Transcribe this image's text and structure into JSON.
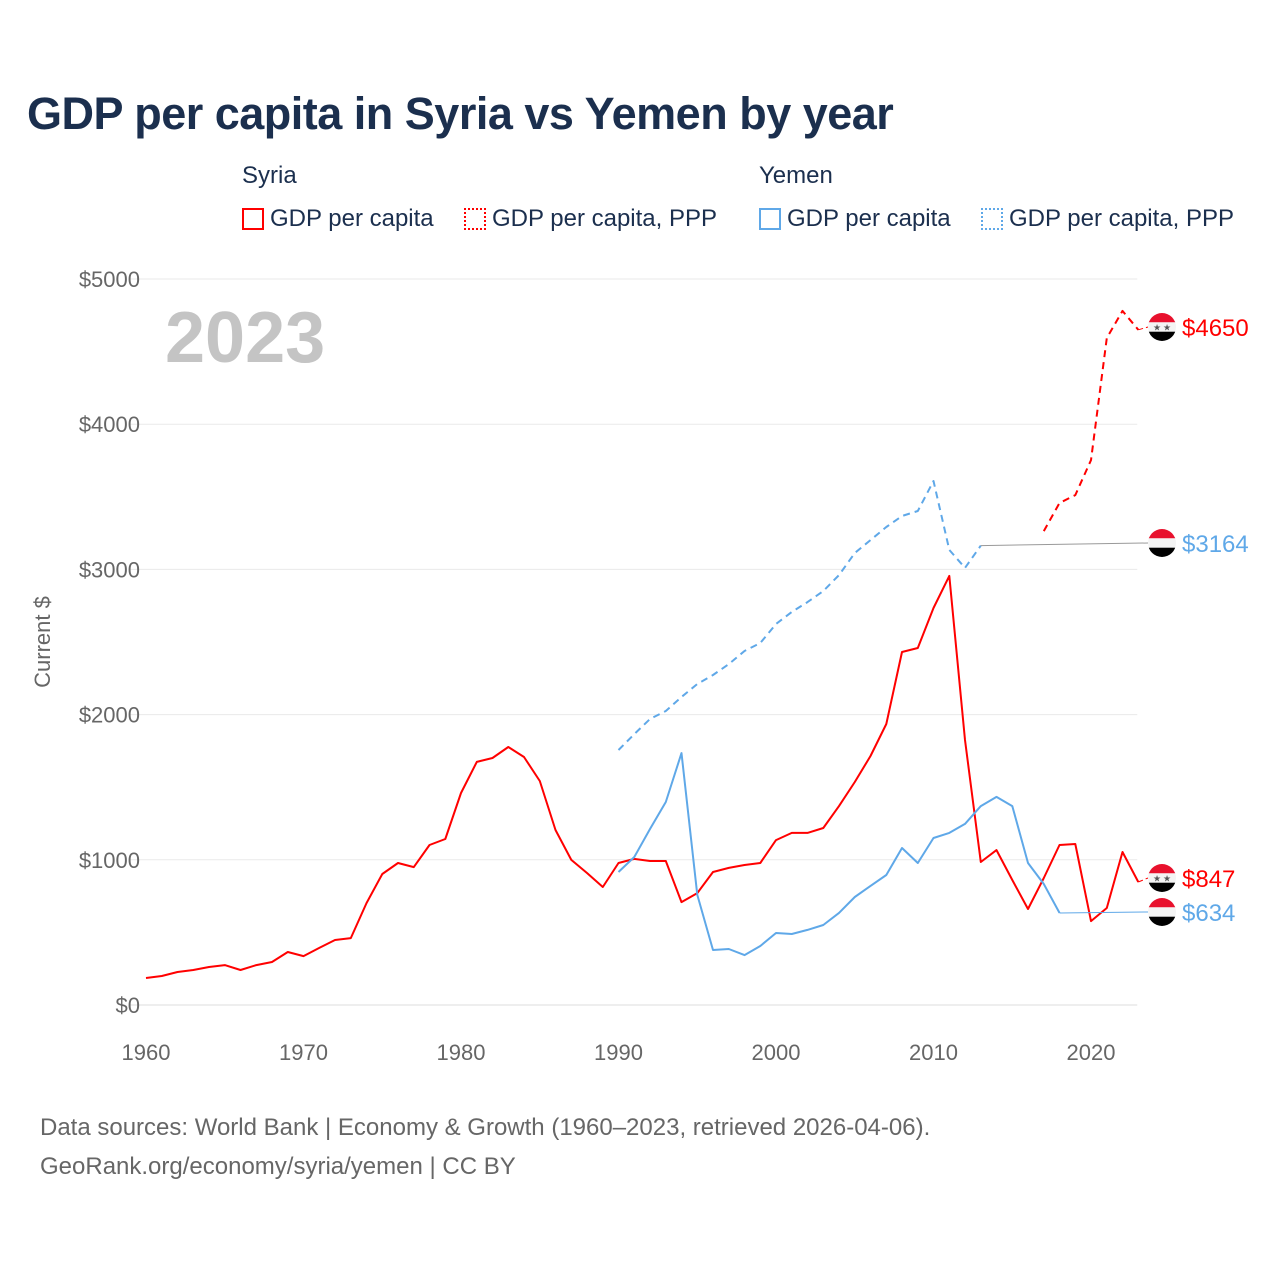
{
  "title": "GDP per capita in Syria vs Yemen by year",
  "legend": {
    "groups": [
      {
        "name": "Syria",
        "color": "#ff0000",
        "items": [
          "GDP per capita",
          "GDP per capita, PPP"
        ]
      },
      {
        "name": "Yemen",
        "color": "#5fa8e8",
        "items": [
          "GDP per capita",
          "GDP per capita, PPP"
        ]
      }
    ]
  },
  "year_watermark": "2023",
  "source": {
    "line1": "Data sources: World Bank | Economy & Growth (1960–2023, retrieved 2026-04-06).",
    "line2": "GeoRank.org/economy/syria/yemen | CC BY"
  },
  "chart_data": {
    "type": "line",
    "title": "GDP per capita in Syria vs Yemen by year",
    "xlabel": "",
    "ylabel": "Current $",
    "xlim": [
      1960,
      2023
    ],
    "ylim": [
      0,
      5000
    ],
    "x_ticks": [
      "1960",
      "1970",
      "1980",
      "1990",
      "2000",
      "2010",
      "2020"
    ],
    "y_ticks": [
      "$0",
      "$1000",
      "$2000",
      "$3000",
      "$4000",
      "$5000"
    ],
    "grid": true,
    "legend_position": "top",
    "series": [
      {
        "name": "Syria GDP per capita",
        "color": "#ff0000",
        "dash": false,
        "start": 1960,
        "values": [
          186,
          200,
          227,
          241,
          262,
          275,
          241,
          275,
          296,
          365,
          337,
          393,
          448,
          461,
          702,
          902,
          978,
          950,
          1102,
          1143,
          1460,
          1674,
          1701,
          1777,
          1708,
          1543,
          1205,
          999,
          909,
          813,
          978,
          1006,
          992,
          992,
          709,
          771,
          916,
          944,
          964,
          978,
          1136,
          1185,
          1185,
          1219,
          1370,
          1536,
          1715,
          1935,
          2431,
          2459,
          2734,
          2955,
          1825,
          985,
          1067,
          861,
          661,
          875,
          1102,
          1109,
          578,
          668,
          1054,
          847
        ],
        "end_label": "$847"
      },
      {
        "name": "Syria GDP per capita, PPP",
        "color": "#ff0000",
        "dash": true,
        "start": 2017,
        "values": [
          3264,
          3457,
          3512,
          3753,
          4594,
          4780,
          4650
        ],
        "end_label": "$4650"
      },
      {
        "name": "Yemen GDP per capita",
        "color": "#5fa8e8",
        "dash": false,
        "start": 1990,
        "values": [
          916,
          1019,
          1212,
          1398,
          1735,
          758,
          379,
          386,
          344,
          406,
          496,
          489,
          517,
          551,
          634,
          744,
          820,
          895,
          1081,
          978,
          1150,
          1185,
          1247,
          1370,
          1433,
          1370,
          978,
          833,
          634
        ],
        "end_label": "$634"
      },
      {
        "name": "Yemen GDP per capita, PPP",
        "color": "#5fa8e8",
        "dash": true,
        "start": 1990,
        "values": [
          1756,
          1866,
          1970,
          2025,
          2121,
          2211,
          2273,
          2348,
          2438,
          2493,
          2624,
          2707,
          2775,
          2851,
          2961,
          3113,
          3202,
          3292,
          3368,
          3402,
          3609,
          3134,
          3010,
          3164
        ],
        "end_label": "$3164"
      }
    ]
  }
}
